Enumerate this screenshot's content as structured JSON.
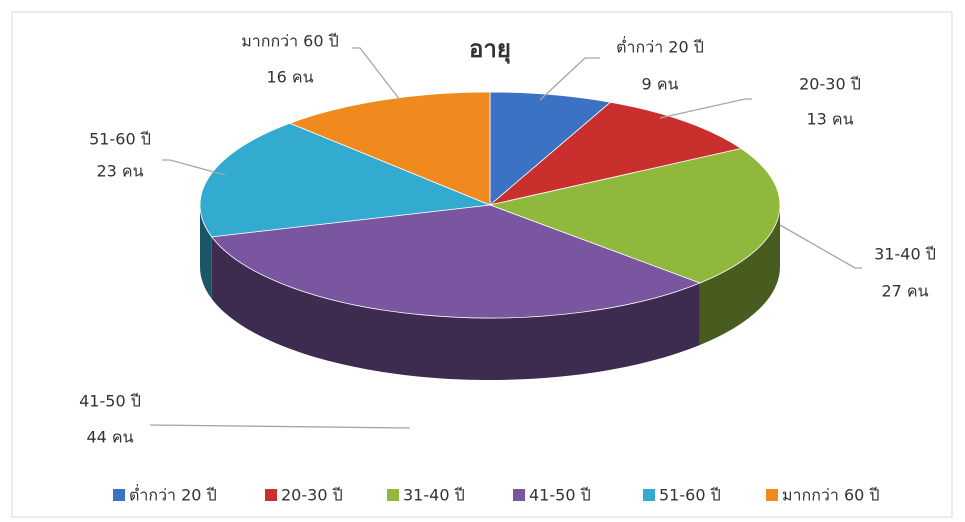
{
  "chart_data": {
    "type": "pie",
    "title": "อายุ",
    "categories": [
      "ต่ำกว่า 20 ปี",
      "20-30 ปี",
      "31-40 ปี",
      "41-50 ปี",
      "51-60 ปี",
      "มากกว่า 60 ปี"
    ],
    "values": [
      9,
      13,
      27,
      44,
      23,
      16
    ],
    "value_labels": [
      "9  คน",
      "13 คน",
      "27 คน",
      "44 คน",
      "23 คน",
      "16 คน"
    ],
    "colors": [
      "#3b72c3",
      "#c9302d",
      "#8fb83d",
      "#7a55a0",
      "#33abd0",
      "#f08a1e"
    ],
    "legend": "bottom"
  }
}
